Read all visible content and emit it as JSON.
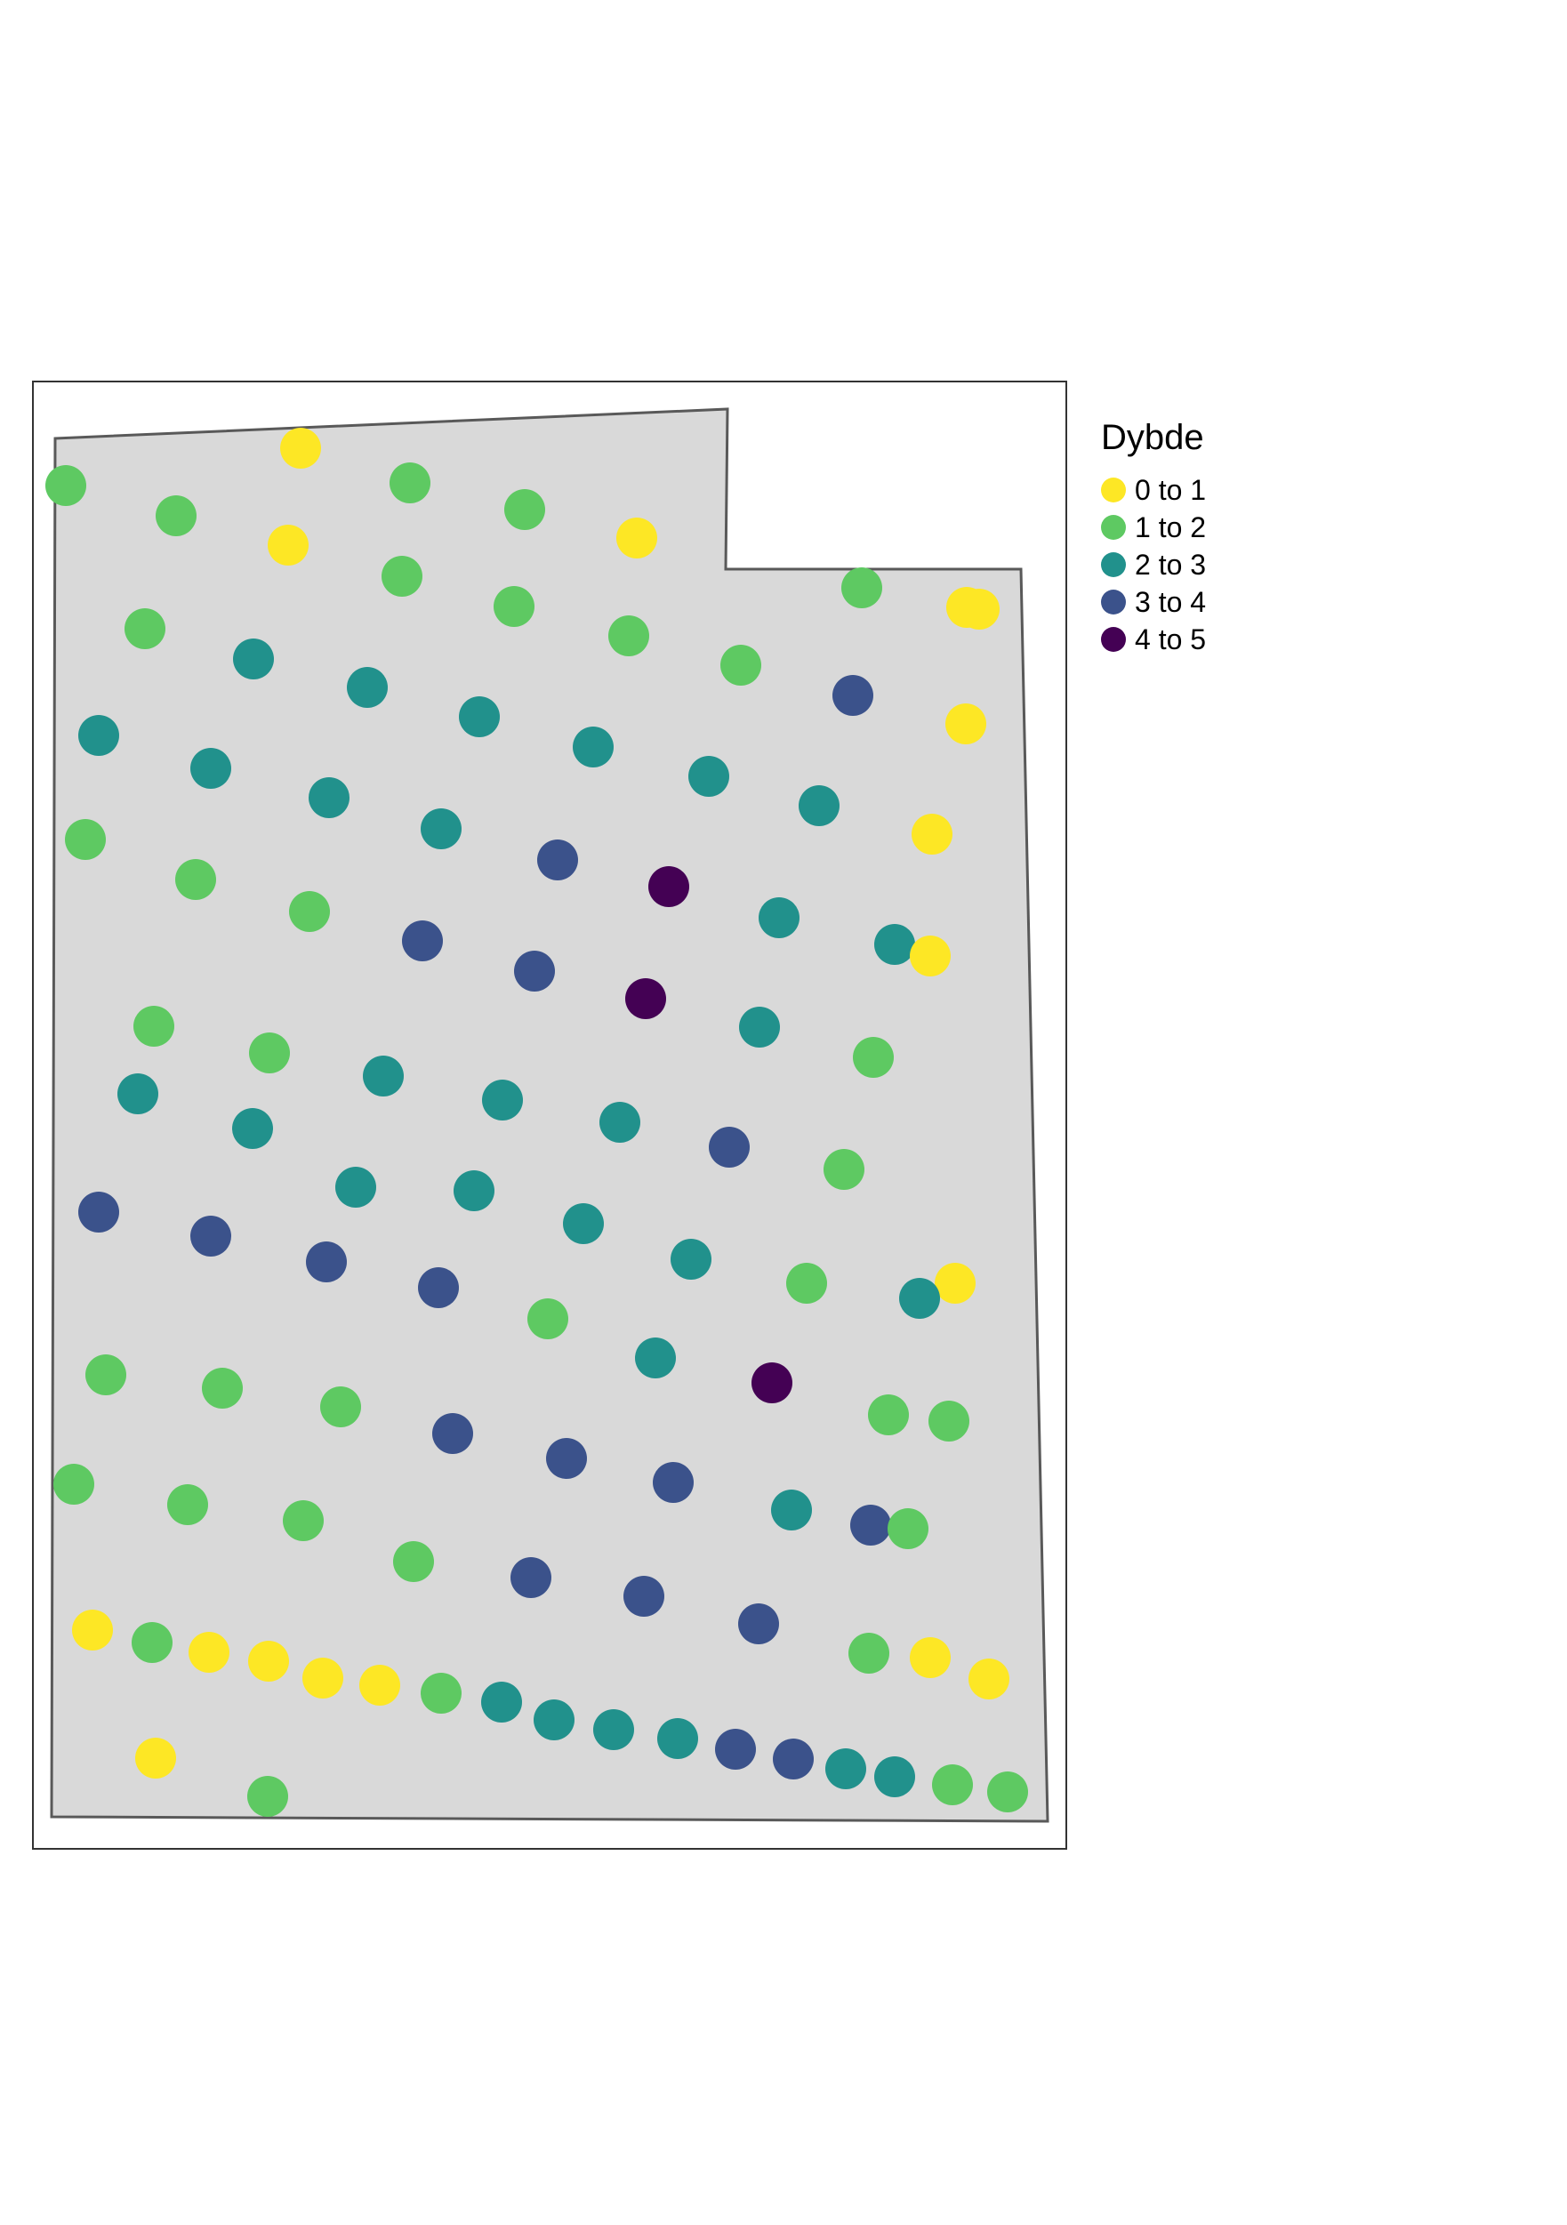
{
  "legend": {
    "title": "Dybde",
    "classes": [
      {
        "label": "0 to 1",
        "color": "#fde725"
      },
      {
        "label": "1 to 2",
        "color": "#5ec962"
      },
      {
        "label": "2 to 3",
        "color": "#21918c"
      },
      {
        "label": "3 to 4",
        "color": "#3b528b"
      },
      {
        "label": "4 to 5",
        "color": "#440154"
      }
    ]
  },
  "map": {
    "polygon_fill": "#d9d9d9",
    "polygon_stroke": "#595959",
    "frame_stroke": "#333333"
  }
}
